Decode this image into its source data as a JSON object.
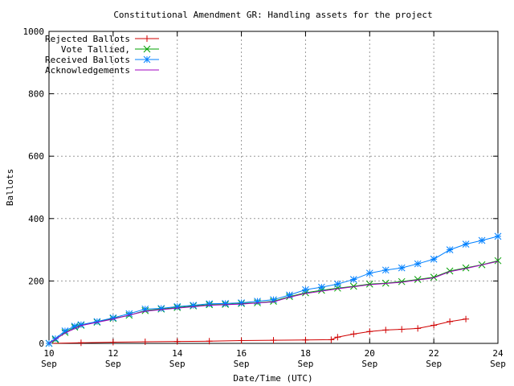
{
  "chart_data": {
    "type": "line",
    "title": "Constitutional Amendment GR: Handling assets for the project",
    "x_label": "Date/Time (UTC)",
    "y_label": "Ballots",
    "xlim": [
      10,
      24
    ],
    "ylim": [
      0,
      1000
    ],
    "xticks": [
      {
        "value": 10,
        "label": "10 Sep"
      },
      {
        "value": 12,
        "label": "12 Sep"
      },
      {
        "value": 14,
        "label": "14 Sep"
      },
      {
        "value": 16,
        "label": "16 Sep"
      },
      {
        "value": 18,
        "label": "18 Sep"
      },
      {
        "value": 20,
        "label": "20 Sep"
      },
      {
        "value": 22,
        "label": "22 Sep"
      },
      {
        "value": 24,
        "label": "24 Sep"
      }
    ],
    "yticks": [
      0,
      200,
      400,
      600,
      800,
      1000
    ],
    "grid": true,
    "legend": "top-left",
    "series": [
      {
        "name": "Rejected Ballots",
        "color": "#d00000",
        "marker": "plus",
        "x": [
          10,
          11,
          12,
          13,
          14,
          15,
          16,
          17,
          18,
          18.8,
          19,
          19.5,
          20,
          20.5,
          21,
          21.5,
          22,
          22.5,
          23
        ],
        "values": [
          0,
          2,
          4,
          5,
          6,
          7,
          9,
          10,
          11,
          12,
          20,
          30,
          38,
          43,
          45,
          48,
          58,
          70,
          78
        ]
      },
      {
        "name": "Vote Tallied,",
        "color": "#00a000",
        "marker": "cross",
        "x": [
          10,
          10.2,
          10.5,
          10.8,
          11,
          11.5,
          12,
          12.5,
          13,
          13.5,
          14,
          14.5,
          15,
          15.5,
          16,
          16.5,
          17,
          17.5,
          18,
          18.5,
          19,
          19.5,
          20,
          20.5,
          21,
          21.5,
          22,
          22.5,
          23,
          23.5,
          24
        ],
        "values": [
          0,
          12,
          35,
          52,
          58,
          68,
          80,
          90,
          105,
          110,
          115,
          120,
          124,
          125,
          128,
          130,
          135,
          150,
          162,
          170,
          177,
          183,
          190,
          193,
          198,
          205,
          212,
          232,
          242,
          252,
          265
        ]
      },
      {
        "name": "Received Ballots",
        "color": "#0080ff",
        "marker": "star",
        "x": [
          10,
          10.2,
          10.5,
          10.8,
          11,
          11.5,
          12,
          12.5,
          13,
          13.5,
          14,
          14.5,
          15,
          15.5,
          16,
          16.5,
          17,
          17.5,
          18,
          18.5,
          19,
          19.5,
          20,
          20.5,
          21,
          21.5,
          22,
          22.5,
          23,
          23.5,
          24
        ],
        "values": [
          0,
          15,
          40,
          55,
          60,
          70,
          82,
          95,
          110,
          112,
          118,
          122,
          127,
          128,
          130,
          135,
          140,
          155,
          172,
          180,
          190,
          205,
          225,
          235,
          242,
          255,
          270,
          300,
          318,
          330,
          343
        ]
      },
      {
        "name": "Acknowledgements",
        "color": "#a000c0",
        "marker": null,
        "x": [
          10,
          10.5,
          11,
          12,
          13,
          14,
          15,
          16,
          17,
          17.5,
          18,
          19,
          20,
          21,
          22,
          22.5,
          23,
          24
        ],
        "values": [
          0,
          33,
          57,
          78,
          103,
          113,
          122,
          126,
          133,
          148,
          160,
          175,
          188,
          196,
          210,
          230,
          240,
          263
        ]
      }
    ]
  }
}
